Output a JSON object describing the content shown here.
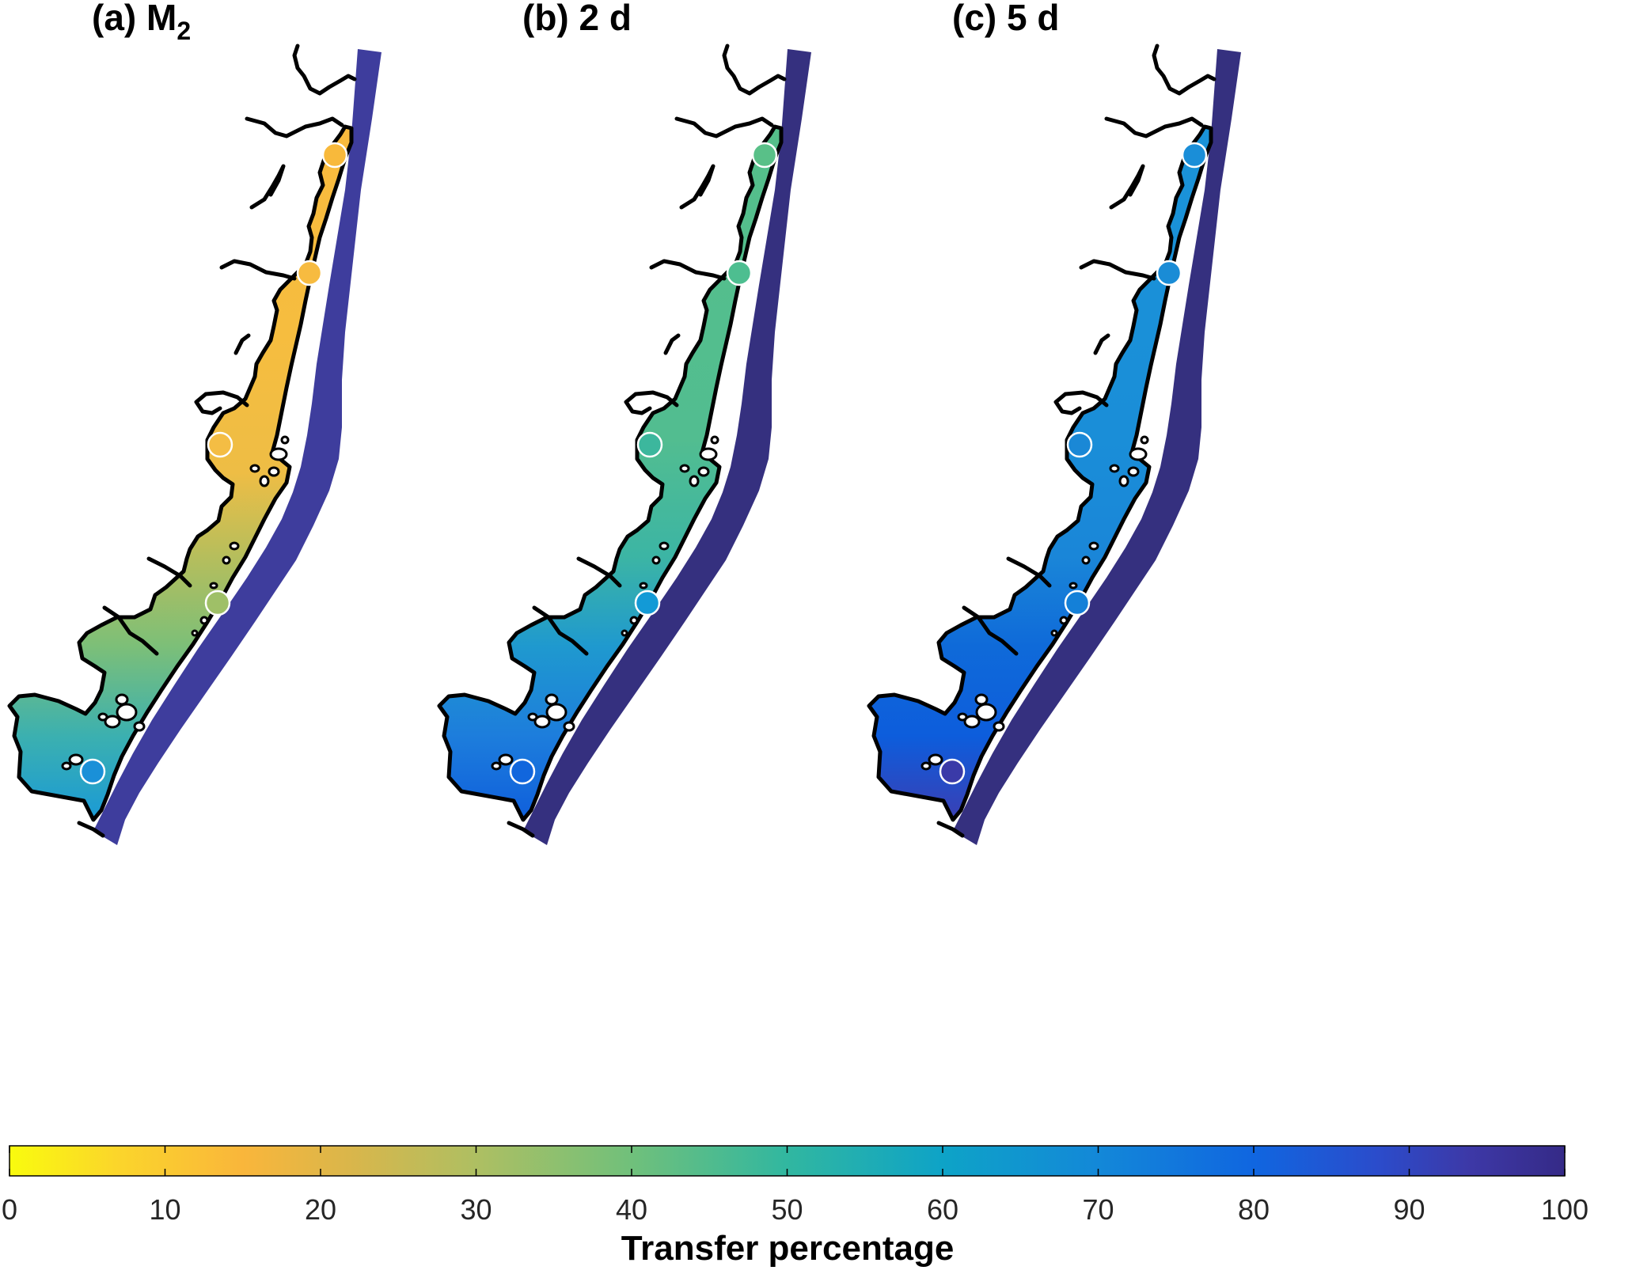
{
  "panels": [
    {
      "title": "(a)  M",
      "title_sub": "2",
      "ocean_color": "#3e3d9d",
      "bay_stops": [
        {
          "pos": 0.0,
          "color": "#f8ba3d"
        },
        {
          "pos": 0.3,
          "color": "#f6bd3f"
        },
        {
          "pos": 0.5,
          "color": "#eebd45"
        },
        {
          "pos": 0.62,
          "color": "#b6be5c"
        },
        {
          "pos": 0.75,
          "color": "#7cbf78"
        },
        {
          "pos": 0.88,
          "color": "#3bb0b0"
        },
        {
          "pos": 1.0,
          "color": "#1a9ad6"
        }
      ],
      "stations": [
        "#f8b93b",
        "#f7bb40",
        "#f4bd44",
        "#9fc067",
        "#1a90d8"
      ]
    },
    {
      "title": "(b)  2 d",
      "title_sub": "",
      "ocean_color": "#35307f",
      "bay_stops": [
        {
          "pos": 0.0,
          "color": "#55bf8a"
        },
        {
          "pos": 0.45,
          "color": "#52bd90"
        },
        {
          "pos": 0.62,
          "color": "#3cb5a4"
        },
        {
          "pos": 0.75,
          "color": "#1f99cf"
        },
        {
          "pos": 0.88,
          "color": "#1d7ddc"
        },
        {
          "pos": 1.0,
          "color": "#0f5fdc"
        }
      ],
      "stations": [
        "#59c088",
        "#4dbe90",
        "#3cb79d",
        "#139ad6",
        "#1166dd"
      ]
    },
    {
      "title": "(c)  5 d",
      "title_sub": "",
      "ocean_color": "#35307f",
      "bay_stops": [
        {
          "pos": 0.0,
          "color": "#1a93d8"
        },
        {
          "pos": 0.45,
          "color": "#1a8ed8"
        },
        {
          "pos": 0.62,
          "color": "#1a86d8"
        },
        {
          "pos": 0.75,
          "color": "#0f6ad9"
        },
        {
          "pos": 0.88,
          "color": "#0d5ddc"
        },
        {
          "pos": 1.0,
          "color": "#3a3fb4"
        }
      ],
      "stations": [
        "#1a8ed8",
        "#1a8cd6",
        "#1a88d6",
        "#1480d8",
        "#3a3aa8"
      ]
    }
  ],
  "colorbar": {
    "label": "Transfer percentage",
    "range": [
      0,
      100
    ],
    "ticks": [
      "0",
      "10",
      "20",
      "30",
      "40",
      "50",
      "60",
      "70",
      "80",
      "90",
      "100"
    ],
    "colormap_stops": [
      {
        "pos": 0.0,
        "color": "#f9fb0e"
      },
      {
        "pos": 0.07,
        "color": "#fbd52b"
      },
      {
        "pos": 0.15,
        "color": "#f9b63b"
      },
      {
        "pos": 0.22,
        "color": "#d9b64b"
      },
      {
        "pos": 0.3,
        "color": "#aebf62"
      },
      {
        "pos": 0.4,
        "color": "#70c07b"
      },
      {
        "pos": 0.5,
        "color": "#31b7a0"
      },
      {
        "pos": 0.6,
        "color": "#0ea3c7"
      },
      {
        "pos": 0.7,
        "color": "#1388d8"
      },
      {
        "pos": 0.8,
        "color": "#1066e0"
      },
      {
        "pos": 0.88,
        "color": "#2b4ccb"
      },
      {
        "pos": 0.94,
        "color": "#3d38a6"
      },
      {
        "pos": 1.0,
        "color": "#352a87"
      }
    ]
  }
}
